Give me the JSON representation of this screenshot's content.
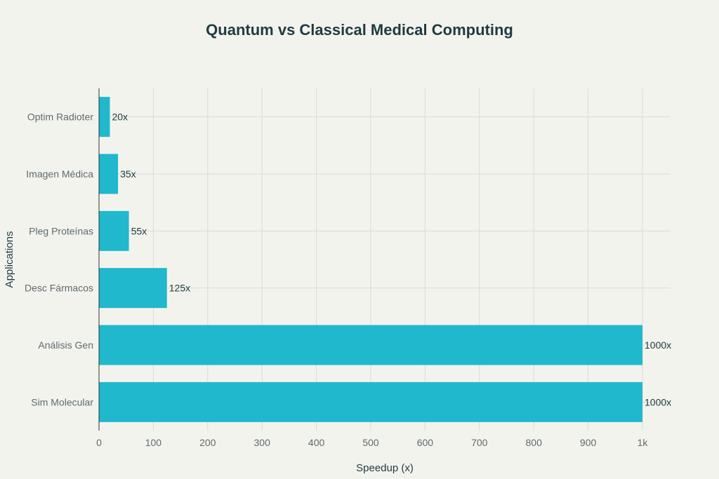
{
  "chart_data": {
    "type": "bar",
    "orientation": "horizontal",
    "title": "Quantum vs Classical Medical Computing",
    "xlabel": "Speedup (x)",
    "ylabel": "Applications",
    "categories": [
      "Optim Radioter",
      "Imagen Médica",
      "Pleg Proteínas",
      "Desc Fármacos",
      "Análisis Gen",
      "Sim Molecular"
    ],
    "values": [
      20,
      35,
      55,
      125,
      1000,
      1000
    ],
    "data_labels": [
      "20x",
      "35x",
      "55x",
      "125x",
      "1000x",
      "1000x"
    ],
    "xlim": [
      0,
      1000
    ],
    "xticks": [
      0,
      100,
      200,
      300,
      400,
      500,
      600,
      700,
      800,
      900,
      1000
    ],
    "xtick_labels": [
      "0",
      "100",
      "200",
      "300",
      "400",
      "500",
      "600",
      "700",
      "800",
      "900",
      "1k"
    ],
    "grid": true,
    "bar_color": "#1fb8cd"
  }
}
